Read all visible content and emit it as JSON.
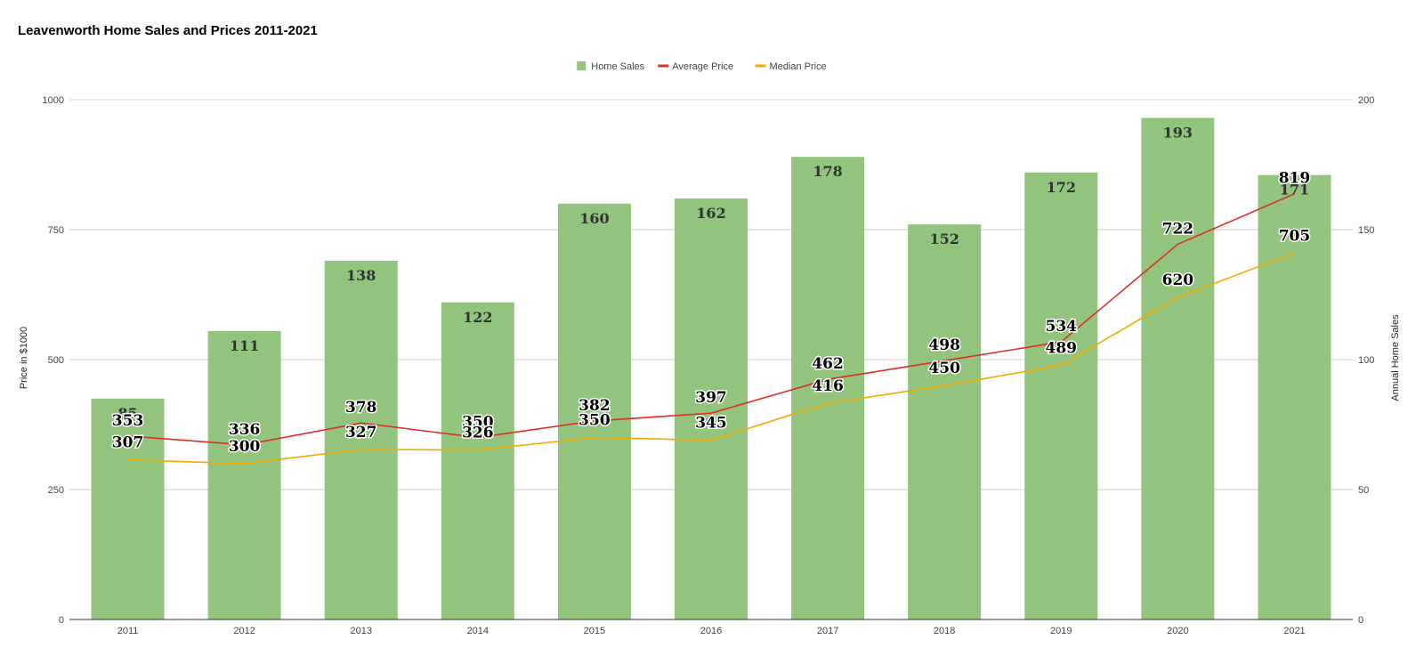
{
  "chart_data": {
    "type": "bar",
    "title": "Leavenworth Home Sales and Prices 2011-2021",
    "categories": [
      "2011",
      "2012",
      "2013",
      "2014",
      "2015",
      "2016",
      "2017",
      "2018",
      "2019",
      "2020",
      "2021"
    ],
    "series": [
      {
        "name": "Home Sales",
        "type": "bar",
        "axis": "right",
        "color": "#93c47d",
        "values": [
          85,
          111,
          138,
          122,
          160,
          162,
          178,
          152,
          172,
          193,
          171
        ]
      },
      {
        "name": "Average Price",
        "type": "line",
        "axis": "left",
        "color": "#d93025",
        "values": [
          353,
          336,
          378,
          350,
          382,
          397,
          462,
          498,
          534,
          722,
          819
        ]
      },
      {
        "name": "Median Price",
        "type": "line",
        "axis": "left",
        "color": "#f2a900",
        "values": [
          307,
          300,
          327,
          326,
          350,
          345,
          416,
          450,
          489,
          620,
          705
        ]
      }
    ],
    "ylabel": "Price in $1000",
    "ylabel_right": "Annual Home Sales",
    "ylim": [
      0,
      1000
    ],
    "ylim_right": [
      0,
      200
    ],
    "yticks": [
      "0",
      "250",
      "500",
      "750",
      "1000"
    ],
    "yticks_right": [
      "0",
      "50",
      "100",
      "150",
      "200"
    ],
    "grid": true,
    "legend": "top-center"
  }
}
